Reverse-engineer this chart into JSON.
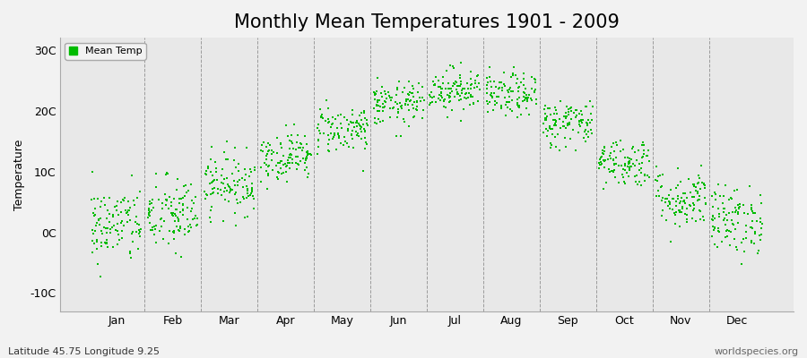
{
  "title": "Monthly Mean Temperatures 1901 - 2009",
  "ylabel": "Temperature",
  "xlabel_bottom_left": "Latitude 45.75 Longitude 9.25",
  "xlabel_bottom_right": "worldspecies.org",
  "legend_label": "Mean Temp",
  "ytick_labels": [
    "-10C",
    "0C",
    "10C",
    "20C",
    "30C"
  ],
  "ytick_values": [
    -10,
    0,
    10,
    20,
    30
  ],
  "ylim": [
    -13,
    32
  ],
  "xlim": [
    -0.5,
    12.5
  ],
  "months": [
    "Jan",
    "Feb",
    "Mar",
    "Apr",
    "May",
    "Jun",
    "Jul",
    "Aug",
    "Sep",
    "Oct",
    "Nov",
    "Dec"
  ],
  "monthly_means": [
    1.2,
    2.8,
    8.0,
    12.5,
    17.0,
    21.0,
    23.5,
    22.5,
    18.0,
    11.5,
    5.5,
    2.0
  ],
  "monthly_stds": [
    3.2,
    3.2,
    2.5,
    2.0,
    2.0,
    1.8,
    1.8,
    1.8,
    2.0,
    2.0,
    2.5,
    2.8
  ],
  "n_years": 109,
  "dot_color": "#00bb00",
  "dot_size": 3,
  "background_color": "#f2f2f2",
  "plot_bg_color": "#e8e8e8",
  "title_fontsize": 15,
  "axis_label_fontsize": 9,
  "tick_fontsize": 9,
  "legend_fontsize": 8,
  "bottom_fontsize": 8,
  "seed": 42
}
